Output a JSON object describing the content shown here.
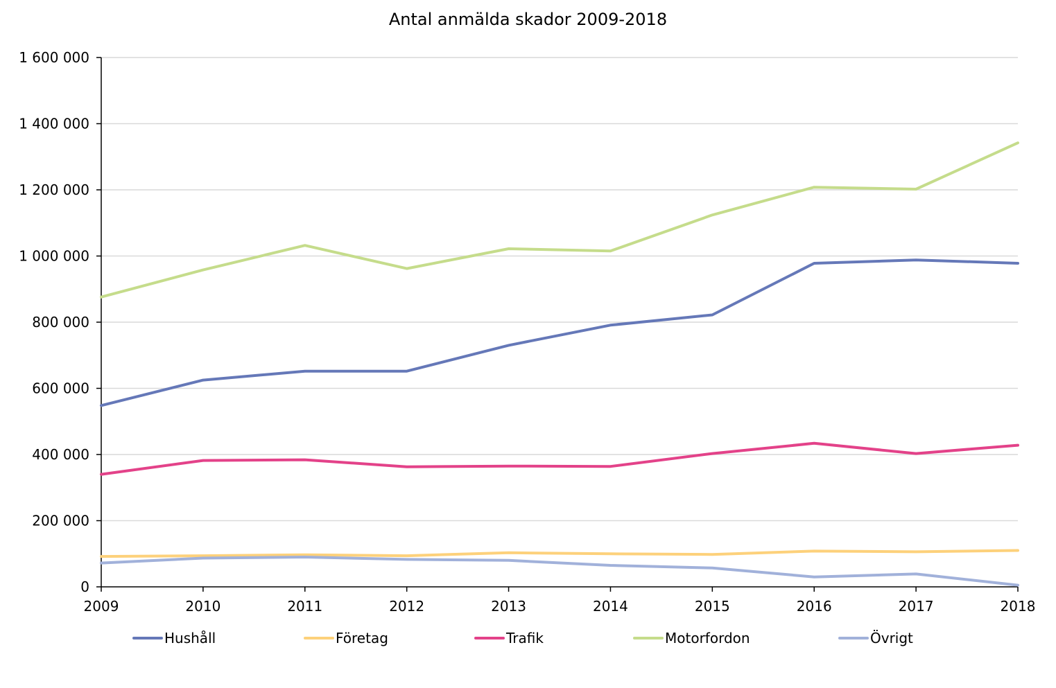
{
  "chart_data": {
    "type": "line",
    "title": "Antal anmälda skador 2009-2018",
    "xlabel": "",
    "ylabel": "",
    "x": [
      "2009",
      "2010",
      "2011",
      "2012",
      "2013",
      "2014",
      "2015",
      "2016",
      "2017",
      "2018"
    ],
    "ylim": [
      0,
      1600000
    ],
    "yticks": [
      0,
      200000,
      400000,
      600000,
      800000,
      1000000,
      1200000,
      1400000,
      1600000
    ],
    "ytick_labels": [
      "0",
      "200 000",
      "400 000",
      "600 000",
      "800 000",
      "1 000 000",
      "1 200 000",
      "1 400 000",
      "1 600 000"
    ],
    "grid": "horizontal",
    "legend_position": "bottom",
    "series": [
      {
        "name": "Hushåll",
        "color": "#6578b8",
        "values": [
          548000,
          625000,
          652000,
          652000,
          730000,
          791000,
          822000,
          978000,
          988000,
          978000
        ]
      },
      {
        "name": "Företag",
        "color": "#fdd17b",
        "values": [
          92000,
          94000,
          97000,
          94000,
          103000,
          100000,
          98000,
          108000,
          106000,
          110000
        ]
      },
      {
        "name": "Trafik",
        "color": "#e34289",
        "values": [
          340000,
          382000,
          384000,
          363000,
          365000,
          364000,
          403000,
          434000,
          403000,
          428000
        ]
      },
      {
        "name": "Motorfordon",
        "color": "#c5dc8b",
        "values": [
          876000,
          958000,
          1032000,
          962000,
          1022000,
          1015000,
          1124000,
          1208000,
          1202000,
          1342000
        ]
      },
      {
        "name": "Övrigt",
        "color": "#a1b1da",
        "values": [
          72000,
          87000,
          90000,
          83000,
          80000,
          65000,
          57000,
          30000,
          39000,
          5000
        ]
      }
    ]
  }
}
